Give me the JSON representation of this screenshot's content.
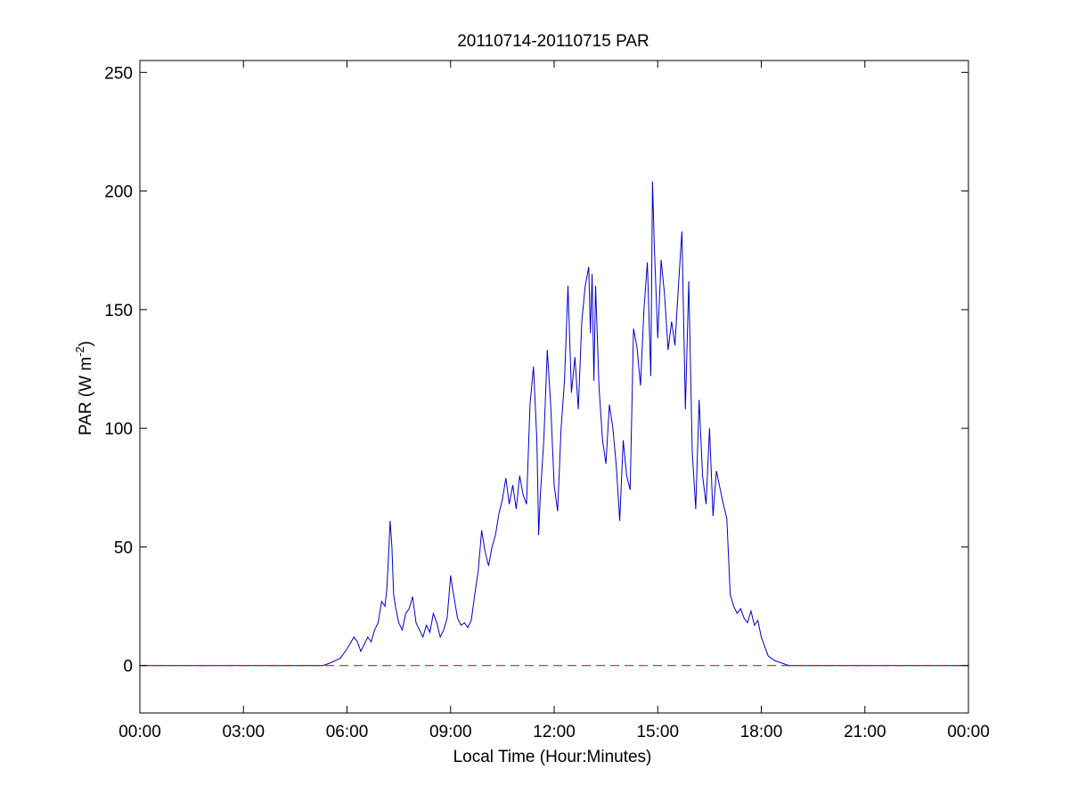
{
  "chart_data": {
    "type": "line",
    "title": "20110714-20110715 PAR",
    "xlabel": "Local Time (Hour:Minutes)",
    "ylabel_main": "PAR (W m",
    "ylabel_sup": "-2",
    "ylabel_end": ")",
    "xlim": [
      0,
      24
    ],
    "ylim": [
      -20,
      255
    ],
    "x_ticks": [
      {
        "value": 0,
        "label": "00:00"
      },
      {
        "value": 3,
        "label": "03:00"
      },
      {
        "value": 6,
        "label": "06:00"
      },
      {
        "value": 9,
        "label": "09:00"
      },
      {
        "value": 12,
        "label": "12:00"
      },
      {
        "value": 15,
        "label": "15:00"
      },
      {
        "value": 18,
        "label": "18:00"
      },
      {
        "value": 21,
        "label": "21:00"
      },
      {
        "value": 24,
        "label": "00:00"
      }
    ],
    "y_ticks": [
      {
        "value": 0,
        "label": "0"
      },
      {
        "value": 50,
        "label": "50"
      },
      {
        "value": 100,
        "label": "100"
      },
      {
        "value": 150,
        "label": "150"
      },
      {
        "value": 200,
        "label": "200"
      },
      {
        "value": 250,
        "label": "250"
      }
    ],
    "grid": false,
    "series": [
      {
        "color": "#0000cc",
        "style": "solid",
        "x": [
          0,
          5.3,
          5.5,
          5.8,
          6.0,
          6.2,
          6.3,
          6.4,
          6.5,
          6.6,
          6.7,
          6.8,
          6.9,
          7.0,
          7.1,
          7.15,
          7.2,
          7.25,
          7.3,
          7.35,
          7.4,
          7.5,
          7.6,
          7.7,
          7.8,
          7.9,
          8.0,
          8.1,
          8.2,
          8.3,
          8.4,
          8.5,
          8.6,
          8.7,
          8.8,
          8.9,
          9.0,
          9.05,
          9.1,
          9.2,
          9.3,
          9.4,
          9.5,
          9.6,
          9.7,
          9.8,
          9.9,
          10.0,
          10.1,
          10.2,
          10.3,
          10.4,
          10.5,
          10.6,
          10.7,
          10.8,
          10.9,
          11.0,
          11.1,
          11.2,
          11.3,
          11.4,
          11.5,
          11.55,
          11.6,
          11.7,
          11.8,
          11.9,
          12.0,
          12.1,
          12.2,
          12.3,
          12.4,
          12.5,
          12.6,
          12.7,
          12.8,
          12.9,
          13.0,
          13.05,
          13.1,
          13.15,
          13.2,
          13.3,
          13.4,
          13.5,
          13.6,
          13.7,
          13.8,
          13.9,
          14.0,
          14.1,
          14.2,
          14.3,
          14.4,
          14.5,
          14.6,
          14.7,
          14.8,
          14.85,
          14.9,
          15.0,
          15.1,
          15.2,
          15.3,
          15.4,
          15.5,
          15.6,
          15.7,
          15.8,
          15.9,
          16.0,
          16.1,
          16.2,
          16.3,
          16.4,
          16.5,
          16.6,
          16.7,
          16.8,
          16.9,
          17.0,
          17.1,
          17.2,
          17.3,
          17.4,
          17.5,
          17.6,
          17.7,
          17.8,
          17.9,
          18.0,
          18.1,
          18.2,
          18.4,
          18.6,
          18.8,
          19.0,
          24.0
        ],
        "values": [
          0,
          0,
          1,
          3,
          7,
          12,
          10,
          6,
          9,
          12,
          10,
          15,
          18,
          27,
          25,
          32,
          45,
          61,
          50,
          30,
          25,
          18,
          15,
          22,
          24,
          29,
          18,
          15,
          12,
          17,
          14,
          22,
          18,
          12,
          15,
          20,
          38,
          33,
          29,
          20,
          17,
          18,
          16,
          19,
          30,
          40,
          57,
          48,
          42,
          50,
          55,
          64,
          70,
          79,
          68,
          76,
          66,
          80,
          72,
          68,
          110,
          126,
          95,
          55,
          72,
          95,
          133,
          110,
          76,
          65,
          100,
          120,
          160,
          115,
          130,
          108,
          145,
          160,
          168,
          140,
          165,
          120,
          160,
          117,
          95,
          85,
          110,
          100,
          84,
          61,
          95,
          80,
          74,
          142,
          134,
          118,
          150,
          170,
          122,
          204,
          177,
          138,
          171,
          156,
          133,
          145,
          135,
          160,
          183,
          108,
          162,
          90,
          66,
          112,
          80,
          68,
          100,
          63,
          82,
          75,
          68,
          62,
          30,
          25,
          22,
          24,
          20,
          18,
          23,
          17,
          19,
          12,
          8,
          4,
          2,
          1,
          0,
          0,
          0
        ]
      },
      {
        "color": "#cc0000",
        "style": "dashed",
        "x": [
          0,
          24
        ],
        "values": [
          0,
          0
        ]
      }
    ]
  }
}
